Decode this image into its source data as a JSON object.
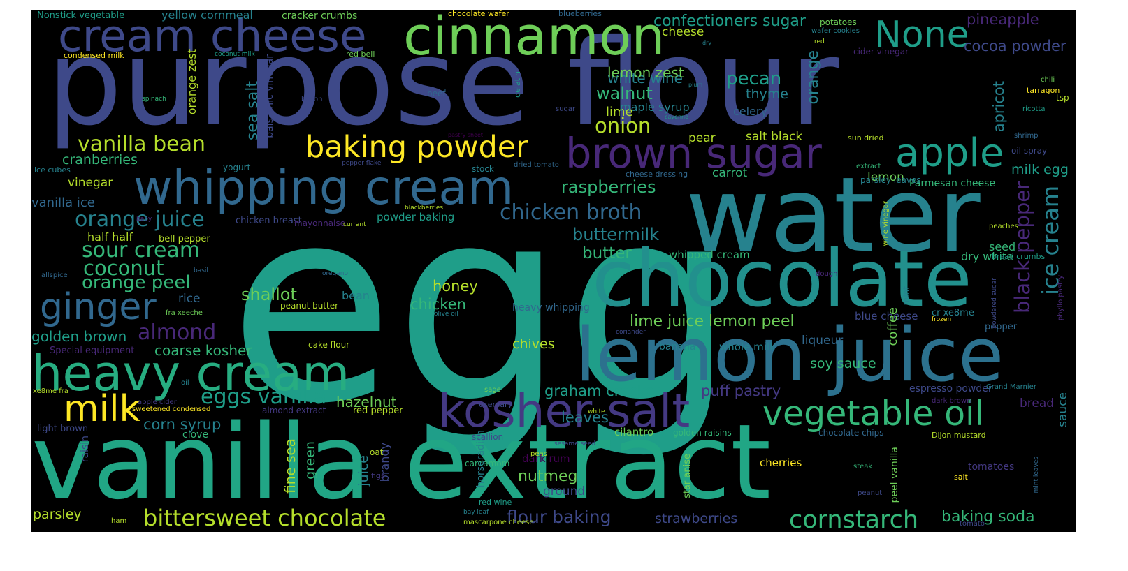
{
  "palette": {
    "background": "#000000",
    "yellow": "#fde725",
    "lime": "#b5de2b",
    "green": "#6ece58",
    "teal_green": "#35b779",
    "teal": "#1f9e89",
    "cyan": "#26828e",
    "blue": "#31688e",
    "indigo": "#3e4989",
    "violet": "#482878",
    "purple": "#440154"
  },
  "words": [
    {
      "text": "egg",
      "color": "#1f9e89"
    },
    {
      "text": "purpose flour",
      "color": "#3e4989"
    },
    {
      "text": "vanilla extract",
      "color": "#21a685"
    },
    {
      "text": "water",
      "color": "#26828e"
    },
    {
      "text": "chocolate",
      "color": "#22908d"
    },
    {
      "text": "lemon juice",
      "color": "#2c718e"
    },
    {
      "text": "heavy cream",
      "color": "#27ad81"
    },
    {
      "text": "cinnamon",
      "color": "#6ece58"
    },
    {
      "text": "cream cheese",
      "color": "#3e4989"
    },
    {
      "text": "whipping cream",
      "color": "#31688e"
    },
    {
      "text": "kosher salt",
      "color": "#443983"
    },
    {
      "text": "brown sugar",
      "color": "#482878"
    },
    {
      "text": "baking powder",
      "color": "#fde725"
    },
    {
      "text": "milk",
      "color": "#fde725"
    },
    {
      "text": "ginger",
      "color": "#31688e"
    },
    {
      "text": "vegetable oil",
      "color": "#35b779"
    },
    {
      "text": "None",
      "color": "#1f9e89"
    },
    {
      "text": "apple",
      "color": "#1f9e89"
    },
    {
      "text": "bittersweet chocolate",
      "color": "#b5de2b"
    },
    {
      "text": "cornstarch",
      "color": "#35b779"
    },
    {
      "text": "vanilla bean",
      "color": "#b5de2b"
    },
    {
      "text": "orange juice",
      "color": "#26828e"
    },
    {
      "text": "sour cream",
      "color": "#35b779"
    },
    {
      "text": "eggs vanilla",
      "color": "#1f9e89"
    },
    {
      "text": "chicken broth",
      "color": "#31688e"
    },
    {
      "text": "black pepper",
      "color": "#482878"
    },
    {
      "text": "ice cream",
      "color": "#26828e"
    },
    {
      "text": "coconut",
      "color": "#35b779"
    },
    {
      "text": "almond",
      "color": "#482878"
    },
    {
      "text": "orange peel",
      "color": "#35b779"
    },
    {
      "text": "onion",
      "color": "#b5de2b"
    },
    {
      "text": "raspberries",
      "color": "#35b779"
    },
    {
      "text": "buttermilk",
      "color": "#26828e"
    },
    {
      "text": "walnut",
      "color": "#35b779"
    },
    {
      "text": "pecan",
      "color": "#1f9e89"
    },
    {
      "text": "white wine",
      "color": "#26828e"
    },
    {
      "text": "lemon zest",
      "color": "#6ece58"
    },
    {
      "text": "confectioners sugar",
      "color": "#1f9e89"
    },
    {
      "text": "pineapple",
      "color": "#482878"
    },
    {
      "text": "cocoa powder",
      "color": "#3e4989"
    },
    {
      "text": "milk egg",
      "color": "#1f9e89"
    },
    {
      "text": "lime juice lemon peel",
      "color": "#6ece58"
    },
    {
      "text": "shallot",
      "color": "#6ece58"
    },
    {
      "text": "honey",
      "color": "#b5de2b"
    },
    {
      "text": "chicken",
      "color": "#35b779"
    },
    {
      "text": "golden brown",
      "color": "#1f9e89"
    },
    {
      "text": "coarse kosher",
      "color": "#35b779"
    },
    {
      "text": "corn syrup",
      "color": "#26828e"
    },
    {
      "text": "graham cracker",
      "color": "#1f9e89"
    },
    {
      "text": "puff pastry",
      "color": "#443983"
    },
    {
      "text": "soy sauce",
      "color": "#35b779"
    },
    {
      "text": "hazelnut",
      "color": "#6ece58"
    },
    {
      "text": "butter",
      "color": "#35b779"
    },
    {
      "text": "leaves",
      "color": "#26828e"
    },
    {
      "text": "nutmeg",
      "color": "#6ece58"
    },
    {
      "text": "flour baking",
      "color": "#3e4989"
    },
    {
      "text": "strawberries",
      "color": "#3e4989"
    },
    {
      "text": "baking soda",
      "color": "#35b779"
    },
    {
      "text": "parsley",
      "color": "#b5de2b"
    },
    {
      "text": "chives",
      "color": "#b5de2b"
    },
    {
      "text": "cranberries",
      "color": "#35b779"
    },
    {
      "text": "vinegar",
      "color": "#b5de2b"
    },
    {
      "text": "vanilla ice",
      "color": "#31688e"
    },
    {
      "text": "half half",
      "color": "#b5de2b"
    },
    {
      "text": "sea salt",
      "color": "#26828e"
    },
    {
      "text": "orange zest",
      "color": "#b5de2b"
    },
    {
      "text": "orange",
      "color": "#26828e"
    },
    {
      "text": "apricot",
      "color": "#26828e"
    },
    {
      "text": "thyme",
      "color": "#26828e"
    },
    {
      "text": "celery",
      "color": "#31688e"
    },
    {
      "text": "lime",
      "color": "#b5de2b"
    },
    {
      "text": "maple syrup",
      "color": "#26828e"
    },
    {
      "text": "pear",
      "color": "#b5de2b"
    },
    {
      "text": "salt black",
      "color": "#b5de2b"
    },
    {
      "text": "carrot",
      "color": "#35b779"
    },
    {
      "text": "lemon",
      "color": "#6ece58"
    },
    {
      "text": "Parmesan cheese",
      "color": "#35b779"
    },
    {
      "text": "seed",
      "color": "#35b779"
    },
    {
      "text": "dry white",
      "color": "#35b779"
    },
    {
      "text": "whipped cream",
      "color": "#35b779"
    },
    {
      "text": "heavy whipping",
      "color": "#31688e"
    },
    {
      "text": "blue cheese",
      "color": "#3e4989"
    },
    {
      "text": "coffee",
      "color": "#6ece58"
    },
    {
      "text": "liqueur",
      "color": "#31688e"
    },
    {
      "text": "banana",
      "color": "#26828e"
    },
    {
      "text": "whole milk",
      "color": "#26828e"
    },
    {
      "text": "cheese",
      "color": "#b5de2b"
    },
    {
      "text": "yellow cornmeal",
      "color": "#26828e"
    },
    {
      "text": "cracker crumbs",
      "color": "#6ece58"
    },
    {
      "text": "Nonstick vegetable",
      "color": "#1f9e89"
    },
    {
      "text": "chocolate wafer",
      "color": "#fde725"
    },
    {
      "text": "blueberries",
      "color": "#31688e"
    },
    {
      "text": "potatoes",
      "color": "#6ece58"
    },
    {
      "text": "wafer cookies",
      "color": "#26828e"
    },
    {
      "text": "cider vinegar",
      "color": "#482878"
    },
    {
      "text": "chili",
      "color": "#6ece58"
    },
    {
      "text": "tarragon",
      "color": "#fde725"
    },
    {
      "text": "tsp",
      "color": "#b5de2b"
    },
    {
      "text": "ricotta",
      "color": "#1f9e89"
    },
    {
      "text": "shrimp",
      "color": "#31688e"
    },
    {
      "text": "oil spray",
      "color": "#3e4989"
    },
    {
      "text": "sun dried",
      "color": "#b5de2b"
    },
    {
      "text": "extract",
      "color": "#35b779"
    },
    {
      "text": "parsley leaves",
      "color": "#26828e"
    },
    {
      "text": "cheese dressing",
      "color": "#31688e"
    },
    {
      "text": "stock",
      "color": "#26828e"
    },
    {
      "text": "dried tomato",
      "color": "#31688e"
    },
    {
      "text": "pepper flake",
      "color": "#3e4989"
    },
    {
      "text": "ice cubes",
      "color": "#26828e"
    },
    {
      "text": "yogurt",
      "color": "#26828e"
    },
    {
      "text": "condensed milk",
      "color": "#fde725"
    },
    {
      "text": "coconut milk",
      "color": "#1f9e89"
    },
    {
      "text": "red bell",
      "color": "#6ece58"
    },
    {
      "text": "red",
      "color": "#b5de2b"
    },
    {
      "text": "dry",
      "color": "#26828e"
    },
    {
      "text": "plum",
      "color": "#26828e"
    },
    {
      "text": "sugar",
      "color": "#3e4989"
    },
    {
      "text": "cayenne",
      "color": "#1f9e89"
    },
    {
      "text": "gelatin",
      "color": "#1f9e89"
    },
    {
      "text": "beef",
      "color": "#31688e"
    },
    {
      "text": "bacon",
      "color": "#3e4989"
    },
    {
      "text": "spinach",
      "color": "#35b779"
    },
    {
      "text": "balsamic vinegar",
      "color": "#3e4989"
    },
    {
      "text": "pastry sheet",
      "color": "#440154"
    },
    {
      "text": "chicken breast",
      "color": "#3e4989"
    },
    {
      "text": "mayonnaise",
      "color": "#482878"
    },
    {
      "text": "currant",
      "color": "#b5de2b"
    },
    {
      "text": "blackberries",
      "color": "#b5de2b"
    },
    {
      "text": "powder baking",
      "color": "#1f9e89"
    },
    {
      "text": "bell pepper",
      "color": "#b5de2b"
    },
    {
      "text": "baby",
      "color": "#482878"
    },
    {
      "text": "basil",
      "color": "#31688e"
    },
    {
      "text": "allspice",
      "color": "#31688e"
    },
    {
      "text": "oregano",
      "color": "#31688e"
    },
    {
      "text": "rice",
      "color": "#31688e"
    },
    {
      "text": "bean",
      "color": "#26828e"
    },
    {
      "text": "peanut butter",
      "color": "#b5de2b"
    },
    {
      "text": "olive oil",
      "color": "#26828e"
    },
    {
      "text": "fra xeeche",
      "color": "#6ece58"
    },
    {
      "text": "cake flour",
      "color": "#b5de2b"
    },
    {
      "text": "Special equipment",
      "color": "#482878"
    },
    {
      "text": "oil",
      "color": "#26828e"
    },
    {
      "text": "xe8me fra",
      "color": "#b5de2b"
    },
    {
      "text": "apple cider",
      "color": "#443983"
    },
    {
      "text": "sweetened condensed",
      "color": "#fde725"
    },
    {
      "text": "almond extract",
      "color": "#443983"
    },
    {
      "text": "red pepper",
      "color": "#b5de2b"
    },
    {
      "text": "light brown",
      "color": "#3e4989"
    },
    {
      "text": "clove",
      "color": "#35b779"
    },
    {
      "text": "raisin",
      "color": "#3e4989"
    },
    {
      "text": "fine sea",
      "color": "#b5de2b"
    },
    {
      "text": "green",
      "color": "#35b779"
    },
    {
      "text": "juice",
      "color": "#26828e"
    },
    {
      "text": "brandy",
      "color": "#3e4989"
    },
    {
      "text": "oat",
      "color": "#b5de2b"
    },
    {
      "text": "figs",
      "color": "#443983"
    },
    {
      "text": "horseradish",
      "color": "#26828e"
    },
    {
      "text": "sage",
      "color": "#6ece58"
    },
    {
      "text": "rosemary",
      "color": "#3e4989"
    },
    {
      "text": "scallion",
      "color": "#3e4989"
    },
    {
      "text": "peas",
      "color": "#b5de2b"
    },
    {
      "text": "sesame seed",
      "color": "#3e4989"
    },
    {
      "text": "white",
      "color": "#b5de2b"
    },
    {
      "text": "cardamom",
      "color": "#35b779"
    },
    {
      "text": "red wine",
      "color": "#1f9e89"
    },
    {
      "text": "bay leaf",
      "color": "#26828e"
    },
    {
      "text": "mascarpone cheese",
      "color": "#b5de2b"
    },
    {
      "text": "ham",
      "color": "#b5de2b"
    },
    {
      "text": "ground",
      "color": "#3e4989"
    },
    {
      "text": "dark rum",
      "color": "#440154"
    },
    {
      "text": "cilantro",
      "color": "#6ece58"
    },
    {
      "text": "golden raisins",
      "color": "#35b779"
    },
    {
      "text": "chocolate chips",
      "color": "#31688e"
    },
    {
      "text": "Dijon mustard",
      "color": "#b5de2b"
    },
    {
      "text": "star anise",
      "color": "#6ece58"
    },
    {
      "text": "cherries",
      "color": "#fde725"
    },
    {
      "text": "peel vanilla",
      "color": "#6ece58"
    },
    {
      "text": "steak",
      "color": "#35b779"
    },
    {
      "text": "tomatoes",
      "color": "#443983"
    },
    {
      "text": "salt",
      "color": "#fde725"
    },
    {
      "text": "peanut",
      "color": "#3e4989"
    },
    {
      "text": "tomato",
      "color": "#3e4989"
    },
    {
      "text": "mint leaves",
      "color": "#31688e"
    },
    {
      "text": "sauce",
      "color": "#26828e"
    },
    {
      "text": "bread",
      "color": "#482878"
    },
    {
      "text": "espresso powder",
      "color": "#3e4989"
    },
    {
      "text": "Grand Marnier",
      "color": "#26828e"
    },
    {
      "text": "dark brown",
      "color": "#482878"
    },
    {
      "text": "mint",
      "color": "#26828e"
    },
    {
      "text": "cr xe8me",
      "color": "#26828e"
    },
    {
      "text": "coriander",
      "color": "#3e4989"
    },
    {
      "text": "frozen",
      "color": "#fde725"
    },
    {
      "text": "pepper",
      "color": "#31688e"
    },
    {
      "text": "wine vinegar",
      "color": "#b5de2b"
    },
    {
      "text": "dough",
      "color": "#482878"
    },
    {
      "text": "powdered sugar",
      "color": "#3e4989"
    },
    {
      "text": "phyllo pastry",
      "color": "#482878"
    },
    {
      "text": "bread crumbs",
      "color": "#1f9e89"
    },
    {
      "text": "peaches",
      "color": "#b5de2b"
    }
  ]
}
